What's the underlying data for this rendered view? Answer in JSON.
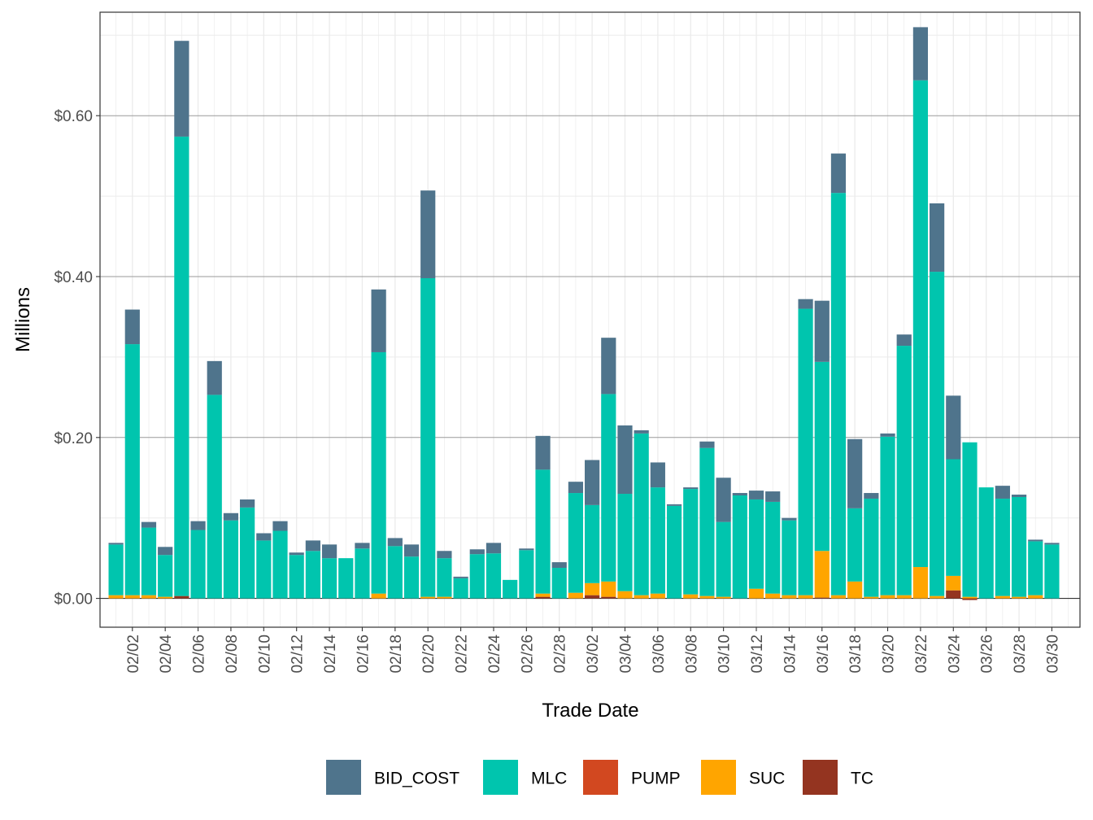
{
  "chart_data": {
    "type": "bar",
    "stacked": true,
    "xlabel": "Trade Date",
    "ylabel": "Millions",
    "ylim": [
      -0.035,
      0.72
    ],
    "y_ticks": [
      0,
      0.2,
      0.4,
      0.6
    ],
    "y_tick_labels": [
      "$0.00",
      "$0.20",
      "$0.40",
      "$0.60"
    ],
    "dates": [
      "02/01",
      "02/02",
      "02/03",
      "02/04",
      "02/05",
      "02/06",
      "02/07",
      "02/08",
      "02/09",
      "02/10",
      "02/11",
      "02/12",
      "02/13",
      "02/14",
      "02/15",
      "02/16",
      "02/17",
      "02/18",
      "02/19",
      "02/20",
      "02/21",
      "02/22",
      "02/23",
      "02/24",
      "02/25",
      "02/26",
      "02/27",
      "02/28",
      "03/01",
      "03/02",
      "03/03",
      "03/04",
      "03/05",
      "03/06",
      "03/07",
      "03/08",
      "03/09",
      "03/10",
      "03/11",
      "03/12",
      "03/13",
      "03/14",
      "03/15",
      "03/16",
      "03/17",
      "03/18",
      "03/19",
      "03/20",
      "03/21",
      "03/22",
      "03/23",
      "03/24",
      "03/25",
      "03/26",
      "03/27",
      "03/28",
      "03/29",
      "03/30",
      "03/31"
    ],
    "x_tick_labels": [
      "02/02",
      "02/04",
      "02/06",
      "02/08",
      "02/10",
      "02/12",
      "02/14",
      "02/16",
      "02/18",
      "02/20",
      "02/22",
      "02/24",
      "02/26",
      "02/28",
      "03/02",
      "03/04",
      "03/06",
      "03/08",
      "03/10",
      "03/12",
      "03/14",
      "03/16",
      "03/18",
      "03/20",
      "03/22",
      "03/24",
      "03/26",
      "03/28",
      "03/30"
    ],
    "grid": true,
    "legend_position": "bottom",
    "series": [
      {
        "name": "TC",
        "color": "#943420",
        "values": [
          0,
          0,
          0,
          0,
          0.003,
          0,
          0,
          0,
          0,
          0,
          0,
          0,
          0,
          0,
          0,
          0,
          0,
          0,
          0,
          0,
          0,
          0,
          0,
          0,
          0,
          0,
          0.002,
          0,
          0,
          0.004,
          0.002,
          0,
          0,
          0,
          0,
          0,
          0,
          0,
          0,
          0,
          0,
          0,
          0,
          0.001,
          0,
          0,
          0,
          0,
          0,
          0,
          0,
          0.01,
          -0.002,
          0,
          0,
          0,
          0,
          0,
          0
        ]
      },
      {
        "name": "SUC",
        "color": "#FFA500",
        "values": [
          0.004,
          0.004,
          0.004,
          0.002,
          0,
          0,
          0,
          0,
          0,
          0,
          0,
          0,
          0,
          0,
          0,
          0,
          0.006,
          0,
          0,
          0.002,
          0.002,
          0,
          0,
          0,
          0,
          0,
          0.004,
          0,
          0.007,
          0.015,
          0.019,
          0.009,
          0.004,
          0.006,
          0,
          0.005,
          0.003,
          0.002,
          0,
          0.012,
          0.006,
          0.004,
          0.004,
          0.058,
          0.004,
          0.021,
          0.002,
          0.004,
          0.004,
          0.039,
          0.003,
          0.018,
          0.002,
          0,
          0.003,
          0.002,
          0.004,
          0,
          0
        ]
      },
      {
        "name": "MLC",
        "color": "#00C5AE",
        "values": [
          0.063,
          0.312,
          0.084,
          0.052,
          0.571,
          0.085,
          0.253,
          0.097,
          0.113,
          0.072,
          0.084,
          0.054,
          0.059,
          0.05,
          0.05,
          0.062,
          0.3,
          0.065,
          0.052,
          0.396,
          0.048,
          0.025,
          0.055,
          0.056,
          0.023,
          0.06,
          0.154,
          0.038,
          0.124,
          0.097,
          0.233,
          0.121,
          0.201,
          0.132,
          0.115,
          0.131,
          0.184,
          0.093,
          0.128,
          0.111,
          0.114,
          0.093,
          0.356,
          0.235,
          0.5,
          0.091,
          0.122,
          0.197,
          0.31,
          0.605,
          0.403,
          0.145,
          0.192,
          0.138,
          0.121,
          0.124,
          0.067,
          0.067,
          0
        ]
      },
      {
        "name": "BID_COST",
        "color": "#4F748C",
        "values": [
          0.002,
          0.043,
          0.007,
          0.01,
          0.119,
          0.011,
          0.042,
          0.009,
          0.01,
          0.009,
          0.012,
          0.003,
          0.013,
          0.017,
          0,
          0.007,
          0.078,
          0.01,
          0.015,
          0.109,
          0.009,
          0.002,
          0.006,
          0.013,
          0,
          0.002,
          0.042,
          0.007,
          0.014,
          0.056,
          0.07,
          0.085,
          0.004,
          0.031,
          0.002,
          0.002,
          0.008,
          0.055,
          0.003,
          0.011,
          0.013,
          0.003,
          0.012,
          0.076,
          0.049,
          0.086,
          0.007,
          0.004,
          0.014,
          0.066,
          0.085,
          0.079,
          0,
          0,
          0.016,
          0.003,
          0.002,
          0.002,
          0
        ]
      }
    ],
    "legend_order": [
      "BID_COST",
      "MLC",
      "PUMP",
      "SUC",
      "TC"
    ],
    "legend_colors": {
      "BID_COST": "#4F748C",
      "MLC": "#00C5AE",
      "PUMP": "#D24820",
      "SUC": "#FFA500",
      "TC": "#943420"
    }
  }
}
